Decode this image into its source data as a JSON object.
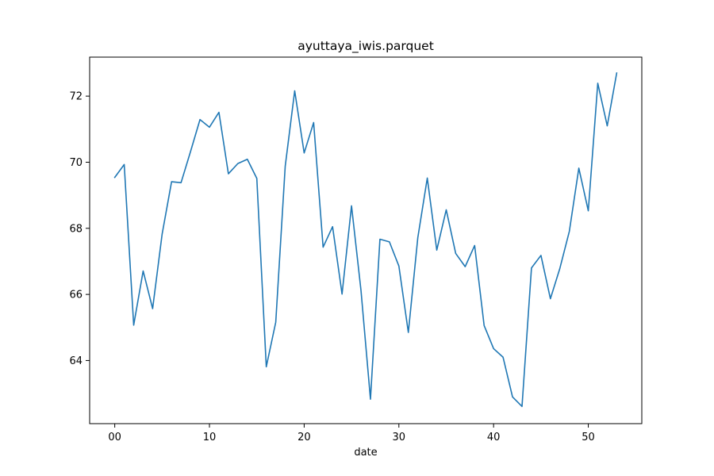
{
  "chart_data": {
    "type": "line",
    "title": "ayuttaya_iwis.parquet",
    "xlabel": "date",
    "ylabel": "",
    "xlim": [
      -2.65,
      55.65
    ],
    "ylim": [
      62.09,
      73.18
    ],
    "xticks": [
      0,
      10,
      20,
      30,
      40,
      50
    ],
    "xtick_labels": [
      "00",
      "10",
      "20",
      "30",
      "40",
      "50"
    ],
    "yticks": [
      64,
      66,
      68,
      70,
      72
    ],
    "ytick_labels": [
      "64",
      "66",
      "68",
      "70",
      "72"
    ],
    "grid": false,
    "series": [
      {
        "color": "#1f77b4",
        "x": [
          0,
          1,
          2,
          3,
          4,
          5,
          6,
          7,
          8,
          9,
          10,
          11,
          12,
          13,
          14,
          15,
          16,
          17,
          18,
          19,
          20,
          21,
          22,
          23,
          24,
          25,
          26,
          27,
          28,
          29,
          30,
          31,
          32,
          33,
          34,
          35,
          36,
          37,
          38,
          39,
          40,
          41,
          42,
          43,
          44,
          45,
          46,
          47,
          48,
          49,
          50,
          51,
          52,
          53
        ],
        "values": [
          69.54,
          69.93,
          65.07,
          66.71,
          65.57,
          67.82,
          69.41,
          69.38,
          70.32,
          71.29,
          71.06,
          71.51,
          69.65,
          69.96,
          70.09,
          69.51,
          63.81,
          65.16,
          69.88,
          72.16,
          70.28,
          71.2,
          67.43,
          68.05,
          66.01,
          68.68,
          66.12,
          62.83,
          67.67,
          67.59,
          66.86,
          64.85,
          67.72,
          69.52,
          67.34,
          68.56,
          67.24,
          66.84,
          67.48,
          65.06,
          64.36,
          64.1,
          62.9,
          62.61,
          66.8,
          67.18,
          65.87,
          66.79,
          67.91,
          69.82,
          68.53,
          72.39,
          71.1,
          72.7
        ]
      }
    ]
  }
}
